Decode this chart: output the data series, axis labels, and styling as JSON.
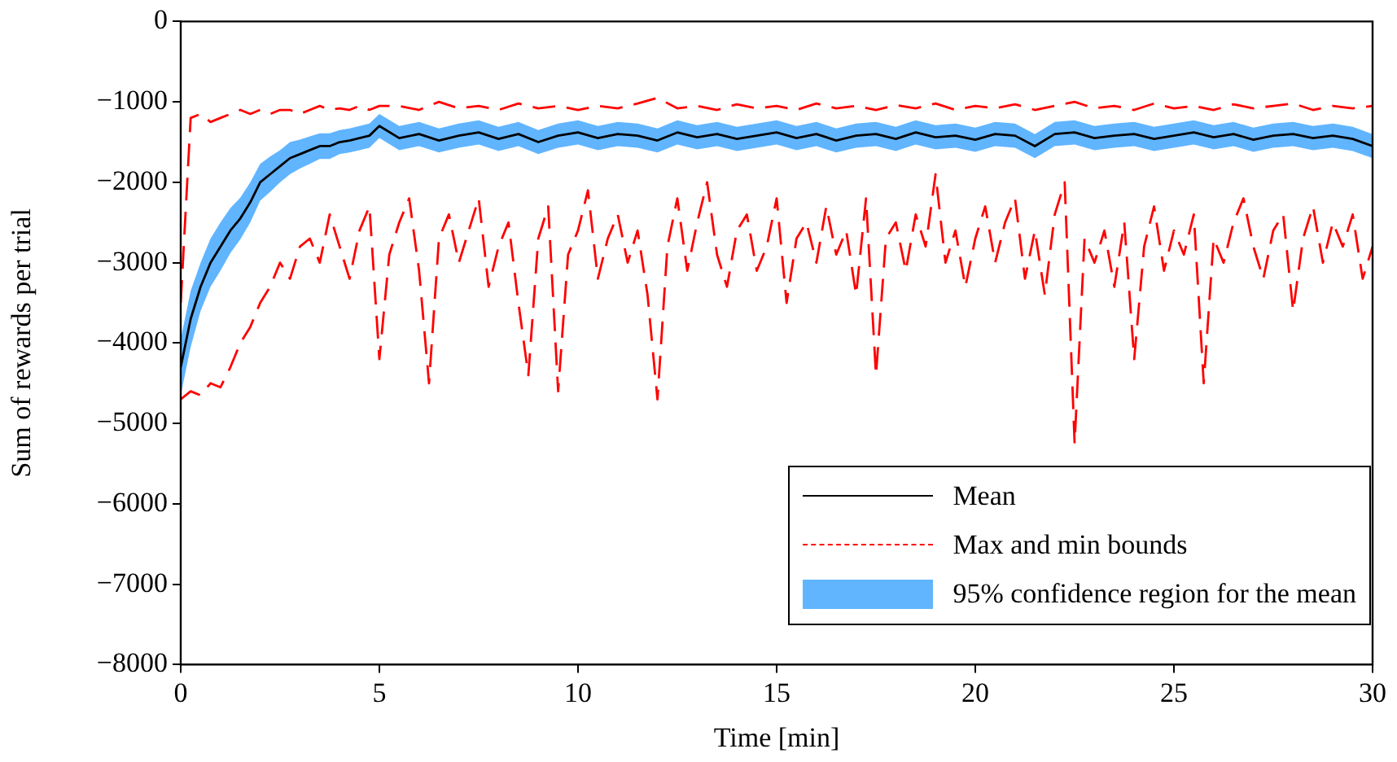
{
  "chart_data": {
    "type": "line",
    "xlabel": "Time [min]",
    "ylabel": "Sum of rewards per trial",
    "xlim": [
      0,
      30
    ],
    "xticks": [
      0,
      5,
      10,
      15,
      20,
      25,
      30
    ],
    "ylim": [
      -8000,
      0
    ],
    "yticks": [
      {
        "value": -8000,
        "label": "−8000"
      },
      {
        "value": -7000,
        "label": "−7000"
      },
      {
        "value": -6000,
        "label": "−6000"
      },
      {
        "value": -5000,
        "label": "−5000"
      },
      {
        "value": -4000,
        "label": "−4000"
      },
      {
        "value": -3000,
        "label": "−3000"
      },
      {
        "value": -2000,
        "label": "−2000"
      },
      {
        "value": -1000,
        "label": "−1000"
      },
      0
    ],
    "grid": false,
    "legend": "bottom right",
    "marker": "none",
    "annotations": [
      "95% confidence region for the mean"
    ],
    "x": [
      0,
      0.25,
      0.5,
      0.75,
      1,
      1.25,
      1.5,
      1.75,
      2,
      2.25,
      2.5,
      2.75,
      3,
      3.25,
      3.5,
      3.75,
      4,
      4.25,
      4.5,
      4.75,
      5,
      5.5,
      6,
      6.5,
      7,
      7.5,
      8,
      8.5,
      9,
      9.5,
      10,
      10.5,
      11,
      11.5,
      12,
      12.5,
      13,
      13.5,
      14,
      14.5,
      15,
      15.5,
      16,
      16.5,
      17,
      17.5,
      18,
      18.5,
      19,
      19.5,
      20,
      20.5,
      21,
      21.5,
      22,
      22.5,
      23,
      23.5,
      24,
      24.5,
      25,
      25.5,
      26,
      26.5,
      27,
      27.5,
      28,
      28.5,
      29,
      29.5,
      30
    ],
    "series": [
      {
        "name": "Mean",
        "color": "#000000",
        "line_style": "solid",
        "values": [
          -4300,
          -3700,
          -3300,
          -3000,
          -2800,
          -2600,
          -2450,
          -2250,
          -2000,
          -1900,
          -1800,
          -1700,
          -1650,
          -1600,
          -1550,
          -1550,
          -1500,
          -1480,
          -1450,
          -1420,
          -1300,
          -1450,
          -1400,
          -1480,
          -1420,
          -1380,
          -1460,
          -1400,
          -1500,
          -1420,
          -1380,
          -1450,
          -1400,
          -1420,
          -1480,
          -1380,
          -1440,
          -1400,
          -1460,
          -1420,
          -1380,
          -1450,
          -1400,
          -1480,
          -1420,
          -1400,
          -1460,
          -1380,
          -1440,
          -1420,
          -1470,
          -1400,
          -1420,
          -1550,
          -1400,
          -1380,
          -1450,
          -1420,
          -1400,
          -1460,
          -1420,
          -1380,
          -1440,
          -1400,
          -1470,
          -1420,
          -1400,
          -1450,
          -1420,
          -1460,
          -1550
        ],
        "lower": [
          -4650,
          -4050,
          -3600,
          -3300,
          -3100,
          -2880,
          -2710,
          -2500,
          -2230,
          -2120,
          -2000,
          -1900,
          -1830,
          -1770,
          -1710,
          -1710,
          -1650,
          -1630,
          -1600,
          -1570,
          -1450,
          -1600,
          -1550,
          -1630,
          -1570,
          -1530,
          -1610,
          -1550,
          -1650,
          -1570,
          -1530,
          -1600,
          -1550,
          -1570,
          -1630,
          -1530,
          -1590,
          -1550,
          -1610,
          -1570,
          -1530,
          -1600,
          -1550,
          -1630,
          -1570,
          -1550,
          -1610,
          -1530,
          -1590,
          -1570,
          -1620,
          -1550,
          -1570,
          -1700,
          -1550,
          -1530,
          -1600,
          -1570,
          -1550,
          -1610,
          -1570,
          -1530,
          -1590,
          -1550,
          -1620,
          -1570,
          -1550,
          -1600,
          -1570,
          -1610,
          -1700
        ],
        "upper": [
          -3950,
          -3350,
          -3000,
          -2700,
          -2500,
          -2320,
          -2190,
          -2000,
          -1770,
          -1680,
          -1600,
          -1500,
          -1470,
          -1430,
          -1390,
          -1390,
          -1350,
          -1330,
          -1300,
          -1270,
          -1150,
          -1300,
          -1250,
          -1330,
          -1270,
          -1230,
          -1310,
          -1250,
          -1350,
          -1270,
          -1230,
          -1300,
          -1250,
          -1270,
          -1330,
          -1230,
          -1290,
          -1250,
          -1310,
          -1270,
          -1230,
          -1300,
          -1250,
          -1330,
          -1270,
          -1250,
          -1310,
          -1230,
          -1290,
          -1270,
          -1320,
          -1250,
          -1270,
          -1400,
          -1250,
          -1230,
          -1300,
          -1270,
          -1250,
          -1310,
          -1270,
          -1230,
          -1290,
          -1250,
          -1320,
          -1270,
          -1250,
          -1300,
          -1270,
          -1310,
          -1400
        ]
      },
      {
        "name": "Max and min bounds",
        "color": "#ff0000",
        "line_style": "dashed",
        "values": [
          -3500,
          -1200,
          -1150,
          -1250,
          -1200,
          -1150,
          -1100,
          -1150,
          -1100,
          -1150,
          -1100,
          -1100,
          -1150,
          -1100,
          -1050,
          -1100,
          -1080,
          -1100,
          -1050,
          -1100,
          -1050,
          -1050,
          -1100,
          -1000,
          -1080,
          -1050,
          -1100,
          -1020,
          -1080,
          -1050,
          -1100,
          -1050,
          -1080,
          -1020,
          -950,
          -1080,
          -1050,
          -1100,
          -1030,
          -1080,
          -1050,
          -1100,
          -1020,
          -1080,
          -1050,
          -1100,
          -1040,
          -1080,
          -1020,
          -1100,
          -1050,
          -1080,
          -1030,
          -1100,
          -1050,
          -1000,
          -1080,
          -1050,
          -1100,
          -1020,
          -1080,
          -1050,
          -1100,
          -1030,
          -1080,
          -1050,
          -1020,
          -1100,
          -1050,
          -1080,
          -1050
        ]
      },
      {
        "color": "#ff0000",
        "line_style": "dashed",
        "x": [
          0,
          0.25,
          0.5,
          0.75,
          1,
          1.25,
          1.5,
          1.75,
          2,
          2.25,
          2.5,
          2.75,
          3,
          3.25,
          3.5,
          3.75,
          4,
          4.25,
          4.5,
          4.75,
          5,
          5.25,
          5.5,
          5.75,
          6,
          6.25,
          6.5,
          6.75,
          7,
          7.25,
          7.5,
          7.75,
          8,
          8.25,
          8.5,
          8.75,
          9,
          9.25,
          9.5,
          9.75,
          10,
          10.25,
          10.5,
          10.75,
          11,
          11.25,
          11.5,
          11.75,
          12,
          12.25,
          12.5,
          12.75,
          13,
          13.25,
          13.5,
          13.75,
          14,
          14.25,
          14.5,
          14.75,
          15,
          15.25,
          15.5,
          15.75,
          16,
          16.25,
          16.5,
          16.75,
          17,
          17.25,
          17.5,
          17.75,
          18,
          18.25,
          18.5,
          18.75,
          19,
          19.25,
          19.5,
          19.75,
          20,
          20.25,
          20.5,
          20.75,
          21,
          21.25,
          21.5,
          21.75,
          22,
          22.25,
          22.5,
          22.75,
          23,
          23.25,
          23.5,
          23.75,
          24,
          24.25,
          24.5,
          24.75,
          25,
          25.25,
          25.5,
          25.75,
          26,
          26.25,
          26.5,
          26.75,
          27,
          27.25,
          27.5,
          27.75,
          28,
          28.25,
          28.5,
          28.75,
          29,
          29.25,
          29.5,
          29.75,
          30
        ],
        "values": [
          -4700,
          -4600,
          -4650,
          -4500,
          -4550,
          -4300,
          -4000,
          -3800,
          -3500,
          -3300,
          -3000,
          -3200,
          -2800,
          -2700,
          -3000,
          -2400,
          -2800,
          -3200,
          -2600,
          -2300,
          -4200,
          -2900,
          -2500,
          -2200,
          -3100,
          -4500,
          -2700,
          -2400,
          -3000,
          -2600,
          -2200,
          -3300,
          -2800,
          -2500,
          -3500,
          -4400,
          -2700,
          -2300,
          -4600,
          -2900,
          -2600,
          -2100,
          -3200,
          -2700,
          -2400,
          -3000,
          -2600,
          -3400,
          -4700,
          -2800,
          -2200,
          -3100,
          -2500,
          -2000,
          -2900,
          -3300,
          -2600,
          -2400,
          -3100,
          -2800,
          -2200,
          -3500,
          -2700,
          -2500,
          -3000,
          -2300,
          -2900,
          -2600,
          -3400,
          -2200,
          -4400,
          -2700,
          -2500,
          -3100,
          -2400,
          -2800,
          -1900,
          -3000,
          -2600,
          -3300,
          -2700,
          -2300,
          -3000,
          -2500,
          -2200,
          -3200,
          -2600,
          -3400,
          -2400,
          -2000,
          -5250,
          -2700,
          -3000,
          -2600,
          -3300,
          -2500,
          -4200,
          -2800,
          -2300,
          -3100,
          -2600,
          -2900,
          -2400,
          -4500,
          -2700,
          -3000,
          -2500,
          -2200,
          -2800,
          -3200,
          -2600,
          -2400,
          -3600,
          -2700,
          -2300,
          -3000,
          -2500,
          -2800,
          -2400,
          -3200,
          -2800
        ]
      }
    ]
  }
}
